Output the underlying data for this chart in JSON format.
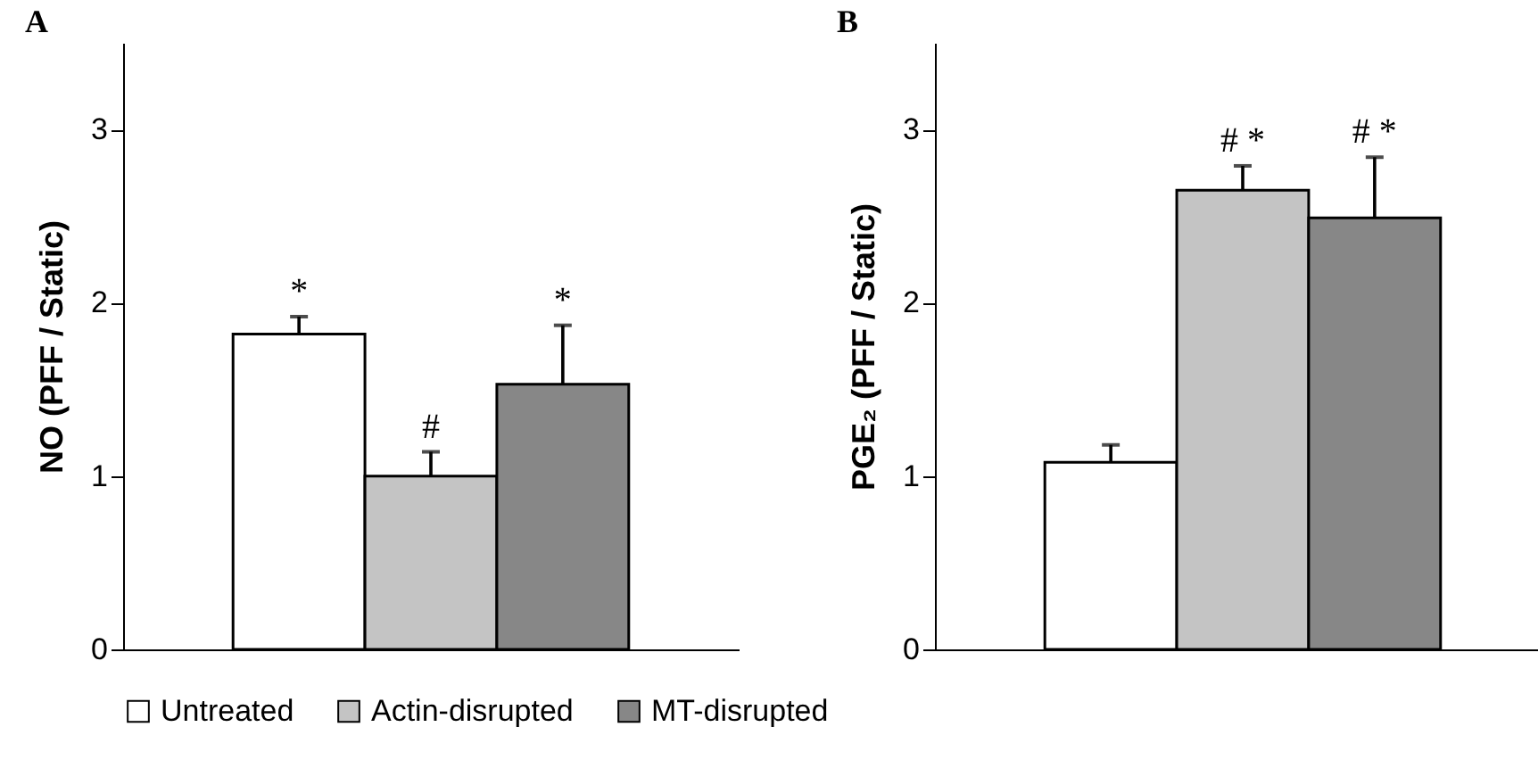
{
  "chart_data": [
    {
      "type": "bar",
      "title": "A",
      "ylabel": "NO (PFF / Static)",
      "categories": [
        null
      ],
      "ylim": [
        0,
        3.5
      ],
      "yticks": [
        0,
        1,
        2,
        3
      ],
      "grid": false,
      "legend": "bottom",
      "tick_labels": "y",
      "series": [
        {
          "name": "Untreated",
          "color": "#ffffff",
          "values": [
            1.82
          ],
          "errors": [
            [
              1.82,
              1.92
            ]
          ],
          "value_labels": [
            "*"
          ]
        },
        {
          "name": "Actin-disrupted",
          "color": "#c4c4c4",
          "values": [
            1.0
          ],
          "errors": [
            [
              1.0,
              1.14
            ]
          ],
          "value_labels": [
            "#"
          ]
        },
        {
          "name": "MT-disrupted",
          "color": "#878787",
          "values": [
            1.53
          ],
          "errors": [
            [
              1.53,
              1.87
            ]
          ],
          "value_labels": [
            "*"
          ]
        }
      ]
    },
    {
      "type": "bar",
      "title": "B",
      "ylabel": "PGE₂ (PFF / Static)",
      "categories": [
        null
      ],
      "ylim": [
        0,
        3.5
      ],
      "yticks": [
        0,
        1,
        2,
        3
      ],
      "grid": false,
      "legend": "bottom",
      "tick_labels": "y",
      "series": [
        {
          "name": "Untreated",
          "color": "#ffffff",
          "values": [
            1.08
          ],
          "errors": [
            [
              1.08,
              1.18
            ]
          ],
          "value_labels": [
            null
          ]
        },
        {
          "name": "Actin-disrupted",
          "color": "#c4c4c4",
          "values": [
            2.65
          ],
          "errors": [
            [
              2.65,
              2.79
            ]
          ],
          "value_labels": [
            "#  *"
          ]
        },
        {
          "name": "MT-disrupted",
          "color": "#878787",
          "values": [
            2.49
          ],
          "errors": [
            [
              2.49,
              2.84
            ]
          ],
          "value_labels": [
            "#  *"
          ]
        }
      ]
    }
  ]
}
